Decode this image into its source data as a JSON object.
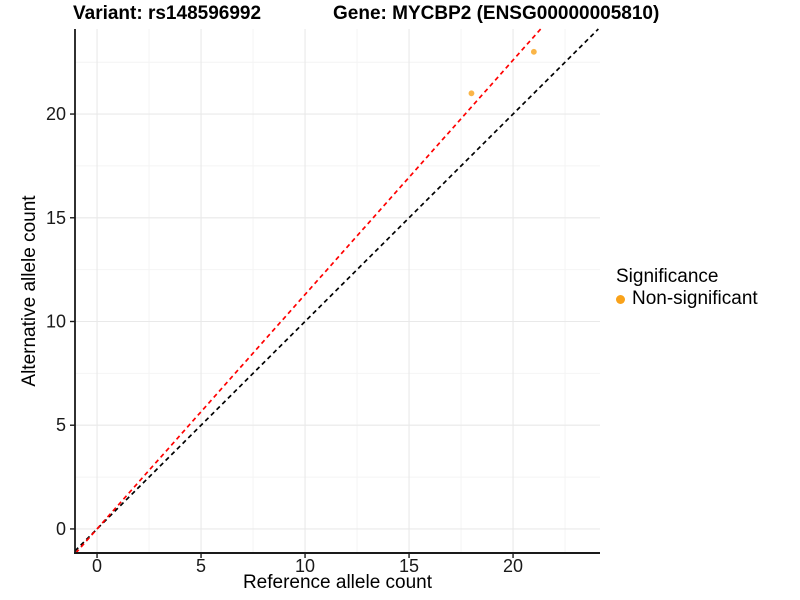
{
  "titles": {
    "variant": "Variant: rs148596992",
    "gene": "Gene: MYCBP2 (ENSG00000005810)"
  },
  "legend": {
    "title": "Significance",
    "items": [
      {
        "label": "Non-significant",
        "color": "#F9A21A",
        "marker": "circle-icon"
      }
    ]
  },
  "colors": {
    "background": "#FFFFFF",
    "axis_text": "#1A1A1A",
    "grid_major": "#E9E9E9",
    "grid_minor": "#F4F4F4",
    "axis_line": "#1A1A1A",
    "point": "#F9A21A",
    "identity_line": "#000000",
    "ratio_line": "#FF0000"
  },
  "chart_data": {
    "type": "scatter",
    "title": "Variant: rs148596992 — Gene: MYCBP2 (ENSG00000005810)",
    "xlabel": "Reference allele count",
    "ylabel": "Alternative allele count",
    "xlim": [
      -1.06,
      24.18
    ],
    "ylim": [
      -1.16,
      24.1
    ],
    "x_ticks": [
      0,
      5,
      10,
      15,
      20
    ],
    "y_ticks": [
      0,
      5,
      10,
      15,
      20
    ],
    "minor_grid_step": 2.5,
    "grid": "major+minor",
    "legend_position": "right",
    "series": [
      {
        "name": "Non-significant",
        "color": "#F9A21A",
        "points": [
          {
            "x": 18,
            "y": 21
          },
          {
            "x": 21,
            "y": 23
          }
        ]
      }
    ],
    "reference_lines": [
      {
        "name": "identity",
        "slope": 1,
        "intercept": 0,
        "color": "#000000",
        "style": "dashed"
      },
      {
        "name": "allelic-ratio",
        "slope": 1.13,
        "intercept": 0,
        "color": "#FF0000",
        "style": "dashed"
      }
    ]
  }
}
